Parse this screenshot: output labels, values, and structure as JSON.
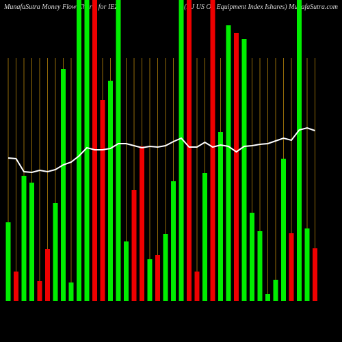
{
  "chart_data": {
    "type": "bar",
    "title": "MunafaSutra  Money Flow  Charts for IEZ",
    "subtitle": "(DJ US Oil Equipment Index Ishares) MunafaSutra.com",
    "categories": [
      null,
      null,
      null,
      null,
      null,
      null,
      null,
      null,
      null,
      null,
      null,
      null,
      null,
      null,
      null,
      null,
      null,
      null,
      null,
      null,
      null,
      null,
      null,
      null,
      null,
      null,
      null,
      null,
      null,
      null,
      null,
      null,
      null,
      null,
      null,
      null,
      null,
      null,
      null,
      null
    ],
    "values": [
      115,
      43,
      183,
      173,
      29,
      76,
      143,
      339,
      27,
      440,
      440,
      440,
      294,
      322,
      440,
      87,
      162,
      226,
      61,
      67,
      98,
      175,
      440,
      440,
      43,
      187,
      440,
      247,
      403,
      392,
      383,
      129,
      102,
      10,
      31,
      208,
      99,
      440,
      106,
      77
    ],
    "colors": [
      "#00ee00",
      "#ee0000",
      "#00ee00",
      "#00ee00",
      "#ee0000",
      "#ee0000",
      "#00ee00",
      "#00ee00",
      "#00ee00",
      "#00ee00",
      "#00ee00",
      "#ee0000",
      "#ee0000",
      "#00ee00",
      "#00ee00",
      "#00ee00",
      "#ee0000",
      "#ee0000",
      "#00ee00",
      "#ee0000",
      "#00ee00",
      "#00ee00",
      "#00ee00",
      "#ee0000",
      "#ee0000",
      "#00ee00",
      "#ee0000",
      "#00ee00",
      "#00ee00",
      "#ee0000",
      "#00ee00",
      "#00ee00",
      "#00ee00",
      "#00ee00",
      "#00ee00",
      "#00ee00",
      "#ee0000",
      "#00ee00",
      "#00ee00",
      "#ee0000"
    ],
    "line": {
      "color": "#ffffff",
      "values": [
        209,
        208,
        189,
        188,
        191,
        189,
        192,
        199,
        203,
        212,
        224,
        221,
        221,
        223,
        230,
        230,
        227,
        224,
        226,
        225,
        227,
        233,
        238,
        225,
        225,
        232,
        225,
        228,
        226,
        218,
        226,
        227,
        229,
        230,
        234,
        238,
        235,
        250,
        253,
        249
      ]
    },
    "ylim": [
      0,
      440
    ],
    "grid_color": "#b8860b"
  }
}
